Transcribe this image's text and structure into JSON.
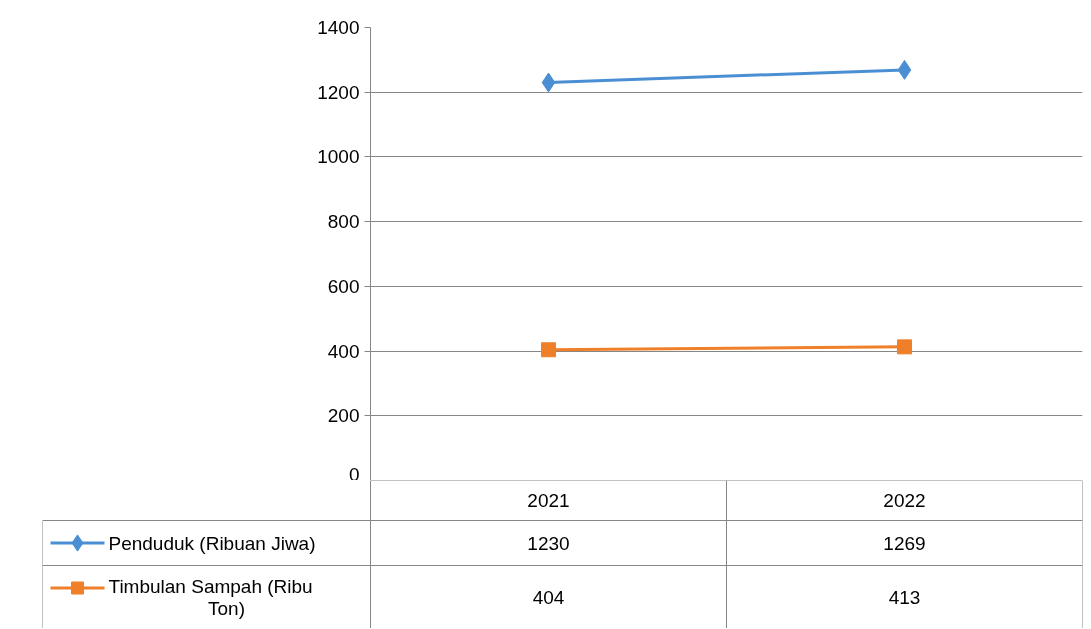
{
  "chart_data": {
    "type": "line",
    "categories": [
      "2021",
      "2022"
    ],
    "series": [
      {
        "name": "Penduduk (Ribuan Jiwa)",
        "color": "#4a8fd4",
        "values": [
          1230,
          1269
        ],
        "marker": "diamond"
      },
      {
        "name": "Timbulan Sampah (Ribu Ton)",
        "color": "#f07f2a",
        "values": [
          404,
          413
        ],
        "marker": "square"
      }
    ],
    "ylim": [
      0,
      1400
    ],
    "yticks": [
      0,
      200,
      400,
      600,
      800,
      1000,
      1200,
      1400
    ],
    "grid": "y",
    "legend": "bottom",
    "data_labels": true
  }
}
